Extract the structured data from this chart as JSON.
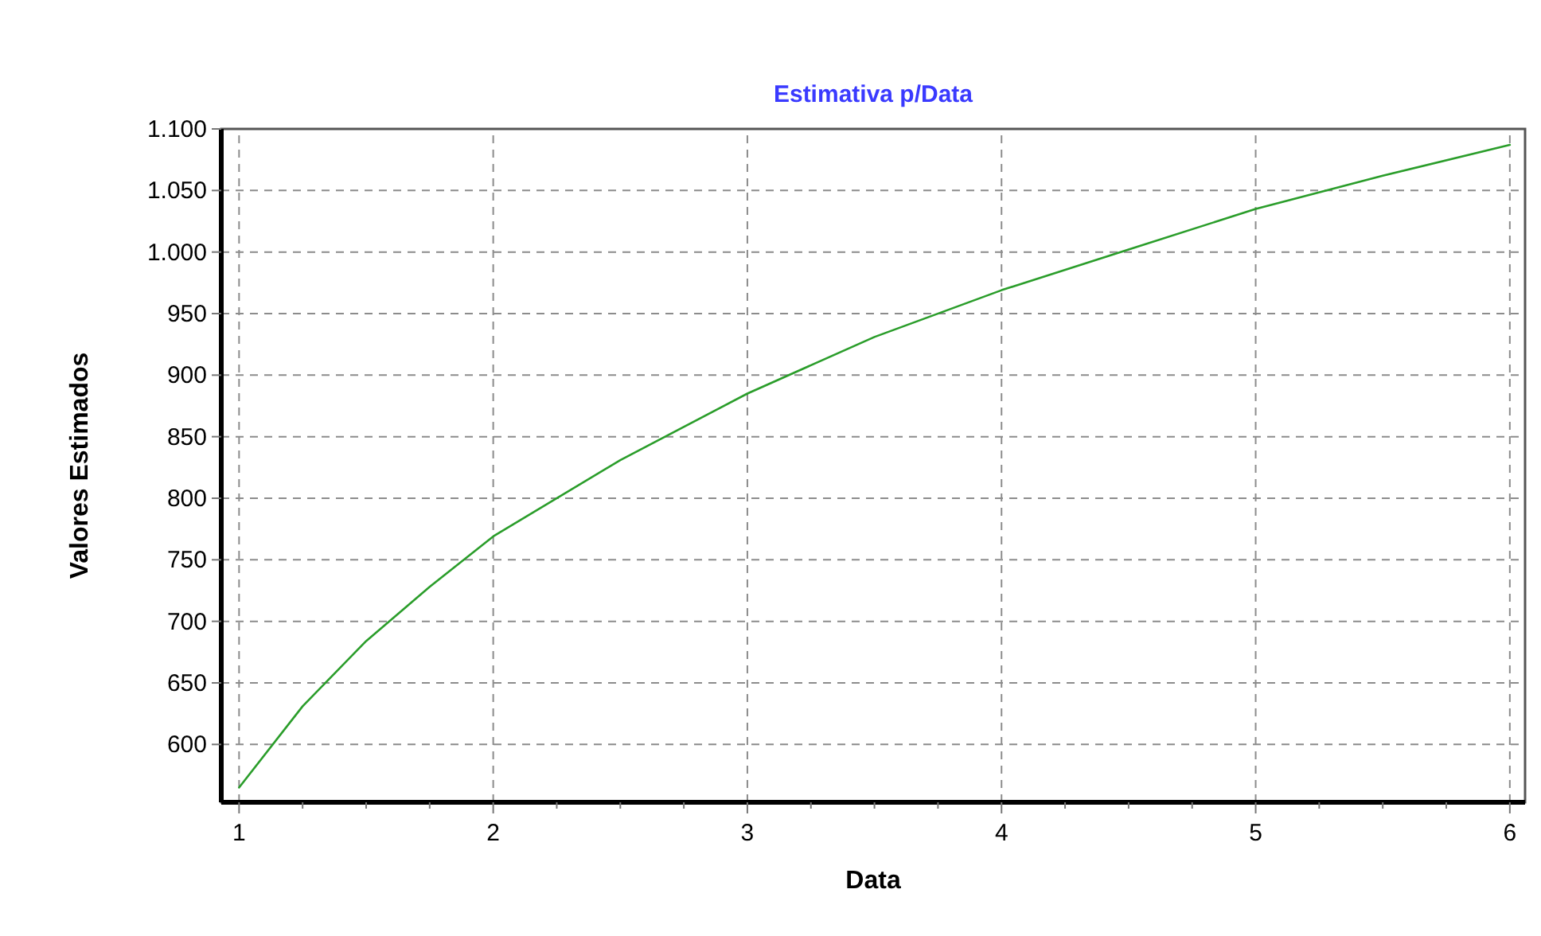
{
  "chart_data": {
    "type": "line",
    "title": "Estimativa p/Data",
    "xlabel": "Data",
    "ylabel": "Valores Estimados",
    "x": [
      1,
      1.25,
      1.5,
      1.75,
      2,
      2.5,
      3,
      3.5,
      4,
      4.5,
      5,
      5.5,
      6
    ],
    "series": [
      {
        "color": "#2a9d2a",
        "values": [
          565,
          631,
          684,
          728,
          769,
          831,
          885,
          931,
          969,
          1002,
          1035,
          1062,
          1087
        ]
      }
    ],
    "xlim": [
      0.93,
      6.06
    ],
    "xticks": [
      1,
      {
        "value": 1.25,
        "label": null
      },
      {
        "value": 1.5,
        "label": null
      },
      {
        "value": 1.75,
        "label": null
      },
      2,
      {
        "value": 2.25,
        "label": null
      },
      {
        "value": 2.5,
        "label": null
      },
      {
        "value": 2.75,
        "label": null
      },
      3,
      {
        "value": 3.25,
        "label": null
      },
      {
        "value": 3.5,
        "label": null
      },
      {
        "value": 3.75,
        "label": null
      },
      4,
      {
        "value": 4.25,
        "label": null
      },
      {
        "value": 4.5,
        "label": null
      },
      {
        "value": 4.75,
        "label": null
      },
      5,
      {
        "value": 5.25,
        "label": null
      },
      {
        "value": 5.5,
        "label": null
      },
      {
        "value": 5.75,
        "label": null
      },
      6
    ],
    "ylim": [
      553,
      1100
    ],
    "yticks": [
      {
        "value": 600,
        "label": "600"
      },
      {
        "value": 650,
        "label": "650"
      },
      {
        "value": 700,
        "label": "700"
      },
      {
        "value": 750,
        "label": "750"
      },
      {
        "value": 800,
        "label": "800"
      },
      {
        "value": 850,
        "label": "850"
      },
      {
        "value": 900,
        "label": "900"
      },
      {
        "value": 950,
        "label": "950"
      },
      {
        "value": 1000,
        "label": "1.000"
      },
      {
        "value": 1050,
        "label": "1.050"
      },
      {
        "value": 1100,
        "label": "1.100"
      }
    ],
    "grid": true,
    "line_style": "solid",
    "marker": "none"
  }
}
